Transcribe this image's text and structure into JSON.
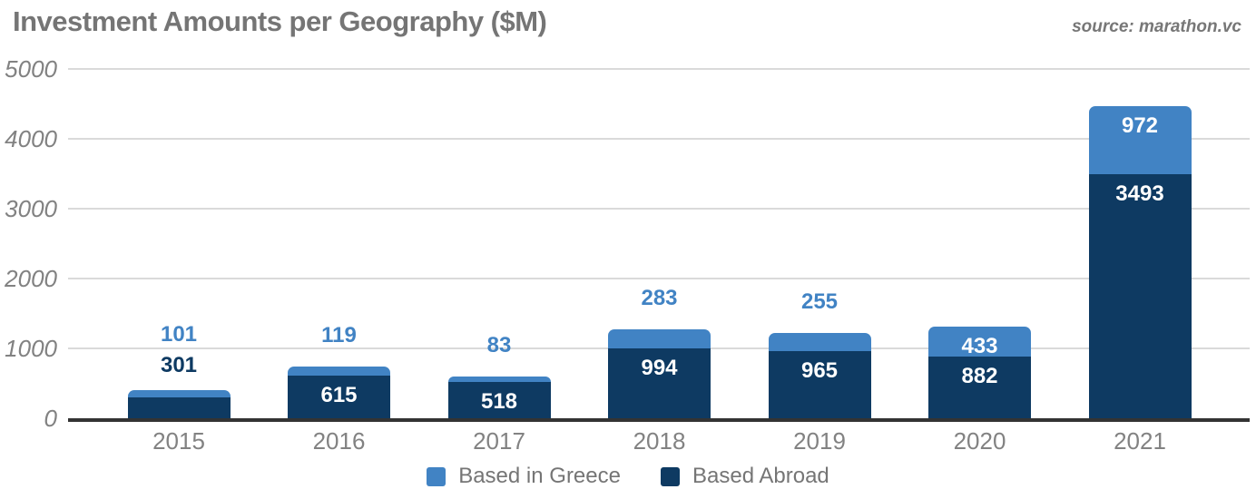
{
  "header": {
    "title": "Investment Amounts per Geography ($M)",
    "source": "source: marathon.vc"
  },
  "colors": {
    "greece": "#4183C4",
    "abroad": "#0E3A62",
    "title_text": "#757575",
    "axis_text": "#828282",
    "legend_text": "#757575",
    "gridline": "#DADADA",
    "axis_line": "#333333",
    "value_label_on_bar": "#FFFFFF"
  },
  "chart_data": {
    "type": "bar",
    "stacked": true,
    "title": "Investment Amounts per Geography ($M)",
    "categories": [
      "2015",
      "2016",
      "2017",
      "2018",
      "2019",
      "2020",
      "2021"
    ],
    "series": [
      {
        "name": "Based in Greece",
        "color": "#4183C4",
        "values": [
          101,
          119,
          83,
          283,
          255,
          433,
          972
        ],
        "label_placement": [
          "above",
          "above",
          "above",
          "above",
          "above",
          "inside",
          "inside"
        ]
      },
      {
        "name": "Based Abroad",
        "color": "#0E3A62",
        "values": [
          301,
          615,
          518,
          994,
          965,
          882,
          3493
        ],
        "label_placement": [
          "above",
          "inside",
          "inside",
          "inside",
          "inside",
          "inside",
          "inside"
        ]
      }
    ],
    "xlabel": "",
    "ylabel": "",
    "ylim": [
      0,
      5000
    ],
    "yticks": [
      0,
      1000,
      2000,
      3000,
      4000,
      5000
    ],
    "grid": true,
    "legend_position": "bottom"
  }
}
